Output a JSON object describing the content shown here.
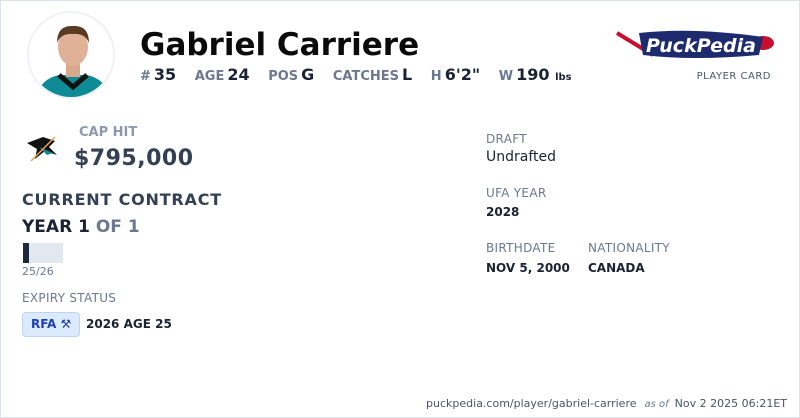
{
  "player": {
    "name": "Gabriel Carriere",
    "number_label": "#",
    "number": "35",
    "age_label": "AGE",
    "age": "24",
    "pos_label": "POS",
    "pos": "G",
    "catches_label": "CATCHES",
    "catches": "L",
    "height_label": "H",
    "height": "6'2\"",
    "weight_label": "W",
    "weight": "190",
    "weight_unit": "lbs"
  },
  "brand": {
    "logo_text": "PuckPedia",
    "subtitle": "PLAYER CARD"
  },
  "contract": {
    "cap_hit_label": "CAP HIT",
    "cap_hit": "$795,000",
    "current_label": "CURRENT CONTRACT",
    "year_label": "YEAR 1",
    "of_label": "OF 1",
    "progress_fraction": 0.15,
    "season": "25/26",
    "expiry_label": "EXPIRY STATUS",
    "status": "RFA",
    "status_icon": "gavel-icon",
    "expiry_detail": "2026 AGE 25"
  },
  "info": {
    "draft_label": "DRAFT",
    "draft": "Undrafted",
    "ufa_label": "UFA YEAR",
    "ufa": "2028",
    "birth_label": "BIRTHDATE",
    "birth": "NOV 5, 2000",
    "nat_label": "NATIONALITY",
    "nat": "CANADA"
  },
  "footer": {
    "url": "puckpedia.com/player/gabriel-carriere",
    "as_of": "as of",
    "timestamp": "Nov 2 2025 06:21ET"
  },
  "colors": {
    "team_teal": "#006d75",
    "badge_bg": "#dbeafe",
    "badge_text": "#1e40af"
  }
}
